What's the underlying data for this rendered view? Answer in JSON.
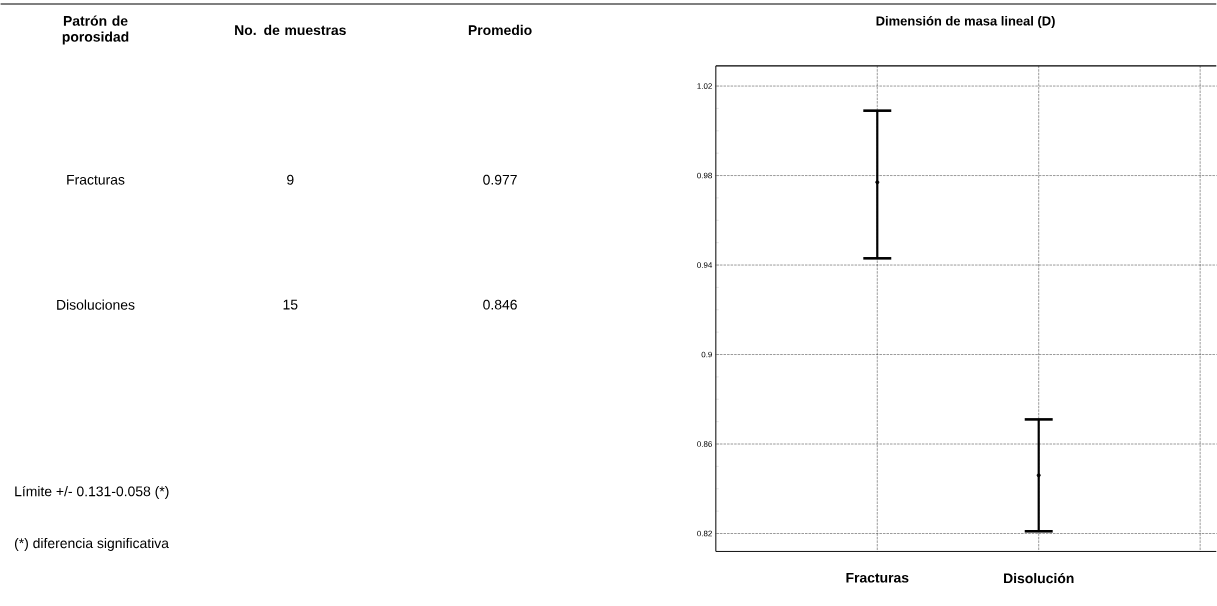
{
  "chart_data": [
    {
      "type": "other",
      "annotations": [
        "Patrón de porosidad",
        "No. de muestras",
        "Promedio",
        "Fracturas",
        "9",
        "0.977",
        "Disoluciones",
        "15",
        "0.846",
        "Límite +/-  0.131-0.058  (*)",
        "(*) diferencia significativa"
      ]
    },
    {
      "type": "scatter",
      "title": "Dimensión de masa lineal (D)",
      "categories": [
        "Fracturas",
        "Disolución"
      ],
      "series": [
        {
          "color": "#000000",
          "values": [
            0.977,
            0.846
          ],
          "errors": [
            [
              0.943,
              1.009
            ],
            [
              0.821,
              0.871
            ]
          ]
        }
      ],
      "ylim": [
        0.812,
        1.029
      ],
      "yticks": [
        0.82,
        0.86,
        0.9,
        0.94,
        0.98,
        1.02
      ],
      "grid": true
    }
  ]
}
